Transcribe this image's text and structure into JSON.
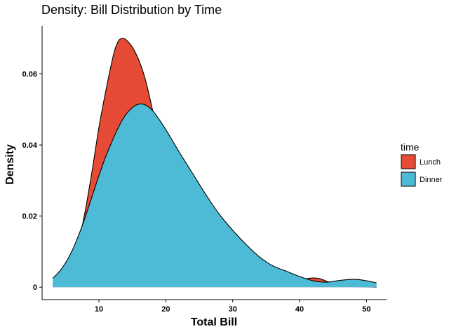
{
  "chart_data": {
    "type": "area",
    "title": "Density: Bill Distribution by Time",
    "xlabel": "Total Bill",
    "ylabel": "Density",
    "xlim": [
      1.5,
      53
    ],
    "ylim": [
      -0.0035,
      0.0735
    ],
    "x_ticks": [
      10,
      20,
      30,
      40,
      50
    ],
    "x_tick_labels": [
      "10",
      "20",
      "30",
      "40",
      "50"
    ],
    "y_ticks": [
      0,
      0.02,
      0.04,
      0.06
    ],
    "y_tick_labels": [
      "0",
      "0.02",
      "0.04",
      "0.06"
    ],
    "grid": false,
    "legend": {
      "title": "time",
      "position": "right"
    },
    "series": [
      {
        "name": "Lunch",
        "color": "#E64B35",
        "x": [
          3.1,
          4,
          5,
          6,
          7,
          8,
          9,
          10,
          11,
          12,
          12.5,
          13,
          13.5,
          14,
          15,
          16,
          17,
          18,
          19,
          20,
          21,
          22,
          23,
          24,
          25,
          26,
          27,
          28,
          29,
          30,
          32,
          34,
          36,
          38,
          39,
          40,
          41,
          42,
          43,
          44,
          45,
          46,
          48,
          50,
          51.5
        ],
        "y": [
          0.0008,
          0.0016,
          0.0035,
          0.007,
          0.013,
          0.022,
          0.033,
          0.045,
          0.055,
          0.064,
          0.0675,
          0.0695,
          0.07,
          0.0697,
          0.0675,
          0.0637,
          0.058,
          0.05,
          0.0425,
          0.036,
          0.0305,
          0.0262,
          0.023,
          0.02,
          0.0175,
          0.0152,
          0.013,
          0.011,
          0.0092,
          0.0076,
          0.005,
          0.0033,
          0.0022,
          0.0018,
          0.0018,
          0.002,
          0.0024,
          0.0026,
          0.0024,
          0.0017,
          0.001,
          0.0005,
          0.0002,
          0.0001,
          0.0
        ]
      },
      {
        "name": "Dinner",
        "color": "#4DBBD5",
        "x": [
          3.1,
          4,
          5,
          6,
          7,
          8,
          9,
          10,
          11,
          12,
          13,
          14,
          15,
          16,
          17,
          18,
          19,
          20,
          21,
          22,
          24,
          26,
          28,
          30,
          32,
          34,
          36,
          38,
          40,
          42,
          43,
          44,
          45,
          46,
          47,
          48,
          49,
          50,
          51.5
        ],
        "y": [
          0.0025,
          0.0042,
          0.0068,
          0.0103,
          0.0148,
          0.02,
          0.0257,
          0.0314,
          0.0367,
          0.0412,
          0.0453,
          0.0485,
          0.0505,
          0.0515,
          0.0512,
          0.0497,
          0.0472,
          0.0443,
          0.0412,
          0.038,
          0.032,
          0.026,
          0.0205,
          0.016,
          0.012,
          0.0085,
          0.006,
          0.0045,
          0.003,
          0.0018,
          0.0015,
          0.0014,
          0.0016,
          0.0019,
          0.0021,
          0.0022,
          0.0021,
          0.0018,
          0.0012
        ]
      }
    ]
  }
}
